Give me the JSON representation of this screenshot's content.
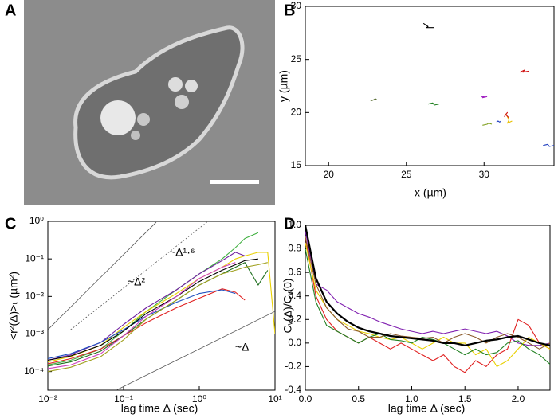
{
  "panel_labels": [
    "A",
    "B",
    "C",
    "D"
  ],
  "chart_data": [
    {
      "type": "line",
      "panel": "B",
      "xlabel": "x (µm)",
      "ylabel": "y (µm)",
      "xlim": [
        18.5,
        34.5
      ],
      "ylim": [
        15,
        30
      ],
      "xticks": [
        20,
        25,
        30
      ],
      "yticks": [
        15,
        20,
        25,
        30
      ],
      "log": false,
      "series": [
        {
          "color": "#000000",
          "x": [
            26.1,
            26.4,
            26.3,
            26.8
          ],
          "values": [
            28.4,
            28.1,
            28.0,
            28.0
          ]
        },
        {
          "color": "#d01010",
          "x": [
            32.3,
            32.6,
            32.5,
            32.9
          ],
          "values": [
            23.8,
            24.0,
            23.8,
            23.9
          ]
        },
        {
          "color": "#a020c0",
          "x": [
            29.8,
            30.0,
            29.9,
            30.2
          ],
          "values": [
            21.5,
            21.5,
            21.4,
            21.5
          ]
        },
        {
          "color": "#556b2f",
          "x": [
            22.7,
            22.9,
            23.0,
            23.1
          ],
          "values": [
            21.1,
            21.2,
            21.3,
            21.2
          ]
        },
        {
          "color": "#208020",
          "x": [
            26.4,
            26.7,
            26.8,
            27.1
          ],
          "values": [
            20.8,
            20.9,
            20.7,
            20.8
          ]
        },
        {
          "color": "#e8c000",
          "x": [
            31.4,
            31.6,
            31.5,
            31.8
          ],
          "values": [
            19.9,
            19.3,
            19.0,
            19.2
          ]
        },
        {
          "color": "#d01010",
          "x": [
            31.3,
            31.5,
            31.4,
            31.6
          ],
          "values": [
            19.6,
            20.0,
            19.8,
            19.5
          ]
        },
        {
          "color": "#80a020",
          "x": [
            29.9,
            30.2,
            30.3,
            30.5
          ],
          "values": [
            18.8,
            18.9,
            19.0,
            18.9
          ]
        },
        {
          "color": "#2040c0",
          "x": [
            30.8,
            30.9,
            31.0,
            31.1
          ],
          "values": [
            19.1,
            19.2,
            19.1,
            19.2
          ]
        },
        {
          "color": "#2040c0",
          "x": [
            33.8,
            34.1,
            34.2,
            34.5
          ],
          "values": [
            16.9,
            17.0,
            16.8,
            16.9
          ]
        }
      ]
    },
    {
      "type": "line",
      "panel": "C",
      "xlabel": "lag time Δ (sec)",
      "ylabel": "<r²(Δ)>ₜ (µm²)",
      "log": true,
      "xlim": [
        0.01,
        10
      ],
      "ylim": [
        3.2e-05,
        1
      ],
      "xticks": [
        {
          "value": 0.01,
          "label": "10⁻²"
        },
        {
          "value": 0.1,
          "label": "10⁻¹"
        },
        {
          "value": 1,
          "label": "10⁰"
        },
        {
          "value": 10,
          "label": "10¹"
        }
      ],
      "yticks": [
        {
          "value": 0.0001,
          "label": "10⁻⁴"
        },
        {
          "value": 0.001,
          "label": "10⁻³"
        },
        {
          "value": 0.01,
          "label": "10⁻²"
        },
        {
          "value": 0.1,
          "label": "10⁻¹"
        },
        {
          "value": 1,
          "label": "10⁰"
        }
      ],
      "x": [
        0.01,
        0.02,
        0.05,
        0.1,
        0.2,
        0.5,
        1,
        2,
        3,
        4,
        6,
        8,
        10
      ],
      "series": [
        {
          "color": "#40b040",
          "values": [
            0.00015,
            0.0002,
            0.0004,
            0.0012,
            0.004,
            0.015,
            0.04,
            0.1,
            0.2,
            0.35,
            0.5,
            null,
            null
          ]
        },
        {
          "color": "#e8d000",
          "values": [
            0.00018,
            0.00025,
            0.0005,
            0.0015,
            0.004,
            0.012,
            0.03,
            0.06,
            0.1,
            0.12,
            0.15,
            0.15,
            0.001
          ]
        },
        {
          "color": "#7020a0",
          "values": [
            0.0002,
            0.00028,
            0.0006,
            0.0018,
            0.005,
            0.015,
            0.04,
            0.09,
            0.15,
            0.12,
            null,
            null,
            null
          ]
        },
        {
          "color": "#e02020",
          "values": [
            0.00016,
            0.00022,
            0.0004,
            0.0009,
            0.002,
            0.005,
            0.009,
            0.016,
            0.013,
            0.008,
            null,
            null,
            null
          ]
        },
        {
          "color": "#2050c0",
          "values": [
            0.00022,
            0.0003,
            0.0006,
            0.0013,
            0.003,
            0.007,
            0.012,
            0.015,
            0.012,
            null,
            null,
            null,
            null
          ]
        },
        {
          "color": "#207020",
          "values": [
            0.00014,
            0.00018,
            0.00035,
            0.0009,
            0.0025,
            0.008,
            0.02,
            0.04,
            0.06,
            0.08,
            0.02,
            0.05,
            null
          ]
        },
        {
          "color": "#000000",
          "values": [
            0.0002,
            0.00026,
            0.0005,
            0.0012,
            0.0035,
            0.01,
            0.025,
            0.05,
            0.07,
            0.09,
            0.1,
            null,
            null
          ]
        },
        {
          "color": "#d040c0",
          "values": [
            0.00012,
            0.00015,
            0.0003,
            0.0009,
            0.003,
            0.01,
            0.03,
            0.06,
            0.08,
            null,
            null,
            null,
            null
          ]
        },
        {
          "color": "#a0a020",
          "values": [
            0.0001,
            0.00013,
            0.00025,
            0.0007,
            0.0025,
            0.008,
            0.02,
            0.04,
            0.05,
            0.06,
            0.07,
            0.08,
            null
          ]
        }
      ],
      "guides": [
        {
          "label": "~Δ²",
          "x": [
            0.01,
            0.27
          ],
          "y": [
            0.0013,
            0.95
          ],
          "dashed": false
        },
        {
          "label": "~Δ¹·⁶",
          "x": [
            0.02,
            1.3
          ],
          "y": [
            0.0013,
            1.0
          ],
          "dashed": true
        },
        {
          "label": "~Δ",
          "x": [
            0.08,
            10
          ],
          "y": [
            3.2e-05,
            0.004
          ],
          "dashed": false
        }
      ]
    },
    {
      "type": "line",
      "panel": "D",
      "xlabel": "lag time Δ (sec)",
      "ylabel": "Cᵥ(Δ)/Cᵥ(0)",
      "log": false,
      "xlim": [
        0,
        2.3
      ],
      "ylim": [
        -0.4,
        1.0
      ],
      "xticks": [
        {
          "value": 0,
          "label": "0.0"
        },
        0.5,
        {
          "value": 1,
          "label": "1.0"
        },
        1.5,
        {
          "value": 2,
          "label": "2.0"
        }
      ],
      "yticks": [
        -0.4,
        -0.2,
        {
          "value": 0,
          "label": "0.0"
        },
        0.2,
        0.4,
        0.6,
        0.8,
        {
          "value": 1,
          "label": "1.0"
        }
      ],
      "x": [
        0,
        0.1,
        0.2,
        0.3,
        0.4,
        0.5,
        0.6,
        0.7,
        0.8,
        0.9,
        1.0,
        1.1,
        1.2,
        1.3,
        1.4,
        1.5,
        1.6,
        1.7,
        1.8,
        1.9,
        2.0,
        2.1,
        2.2,
        2.3
      ],
      "series": [
        {
          "color": "#8020b0",
          "values": [
            0.95,
            0.5,
            0.45,
            0.35,
            0.3,
            0.25,
            0.22,
            0.18,
            0.15,
            0.12,
            0.1,
            0.08,
            0.1,
            0.08,
            0.1,
            0.12,
            0.1,
            0.08,
            0.1,
            0.06,
            0.0,
            -0.02,
            -0.02,
            0.0
          ]
        },
        {
          "color": "#e02020",
          "values": [
            0.9,
            0.4,
            0.2,
            0.1,
            0.05,
            0.0,
            0.05,
            0.0,
            -0.05,
            0.0,
            -0.05,
            -0.1,
            -0.15,
            -0.1,
            -0.2,
            -0.25,
            -0.15,
            -0.2,
            -0.1,
            -0.05,
            0.2,
            0.15,
            0.0,
            -0.05
          ]
        },
        {
          "color": "#e8d000",
          "values": [
            0.85,
            0.45,
            0.3,
            0.2,
            0.15,
            0.1,
            0.08,
            0.05,
            0.03,
            0.05,
            0.0,
            -0.05,
            0.0,
            0.05,
            0.0,
            0.0,
            -0.1,
            -0.05,
            -0.2,
            -0.15,
            -0.05,
            0.05,
            0.0,
            -0.05
          ]
        },
        {
          "color": "#208020",
          "values": [
            0.8,
            0.35,
            0.15,
            0.1,
            0.05,
            0.0,
            0.05,
            0.08,
            0.03,
            0.02,
            0.0,
            0.05,
            0.03,
            0.0,
            -0.05,
            -0.1,
            -0.05,
            -0.1,
            -0.08,
            0.0,
            0.02,
            -0.05,
            -0.1,
            -0.18
          ]
        },
        {
          "color": "#8b5a2b",
          "values": [
            0.9,
            0.5,
            0.3,
            0.2,
            0.12,
            0.1,
            0.05,
            0.05,
            0.08,
            0.06,
            0.05,
            0.04,
            0.05,
            0.0,
            0.05,
            0.08,
            0.05,
            0.0,
            0.05,
            0.08,
            0.05,
            0.0,
            -0.05,
            0.0
          ]
        },
        {
          "color": "#000000",
          "width": 2.2,
          "values": [
            1.0,
            0.55,
            0.35,
            0.25,
            0.18,
            0.13,
            0.1,
            0.08,
            0.06,
            0.05,
            0.04,
            0.03,
            0.02,
            0.0,
            0.0,
            -0.02,
            0.0,
            0.02,
            0.03,
            0.05,
            0.06,
            0.03,
            0.0,
            -0.02
          ]
        }
      ]
    }
  ]
}
